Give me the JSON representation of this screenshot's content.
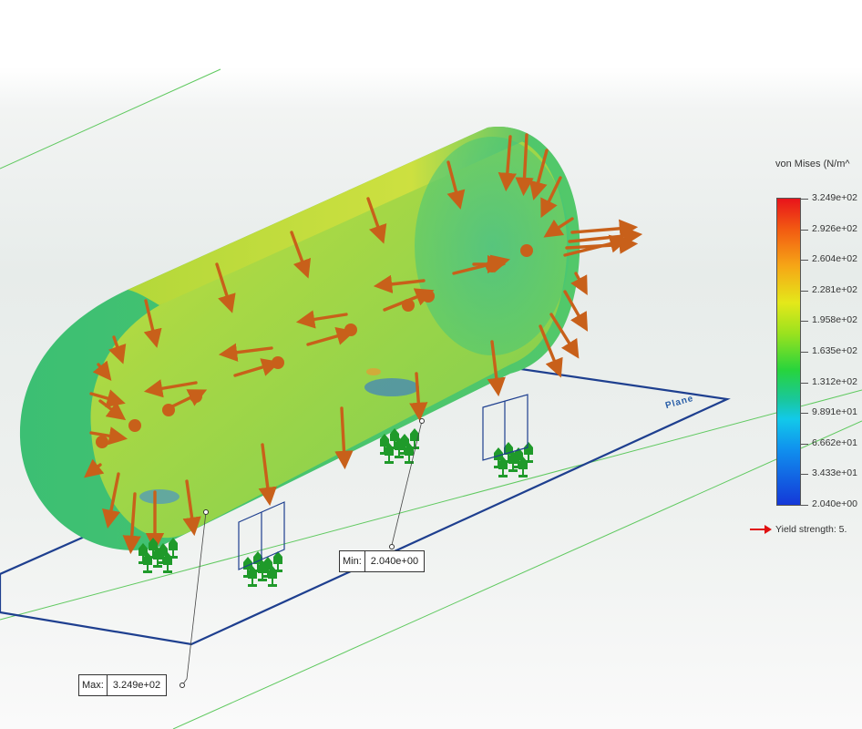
{
  "legend": {
    "title": "von Mises (N/m^",
    "ticks": [
      "3.249e+02",
      "2.926e+02",
      "2.604e+02",
      "2.281e+02",
      "1.958e+02",
      "1.635e+02",
      "1.312e+02",
      "9.891e+01",
      "6.662e+01",
      "3.433e+01",
      "2.040e+00"
    ],
    "yield_text": "Yield strength: 5.",
    "colors": {
      "max": "#e8141b",
      "mid": "#27d43c",
      "min": "#1438d8"
    }
  },
  "probes": {
    "max": {
      "key": "Max:",
      "value": "3.249e+02"
    },
    "min": {
      "key": "Min:",
      "value": "2.040e+00"
    }
  },
  "plane_label": "Plane",
  "icons": {
    "load": "pressure-arrow-icon",
    "fixture": "fixed-support-icon",
    "yield": "yield-arrow-icon"
  }
}
